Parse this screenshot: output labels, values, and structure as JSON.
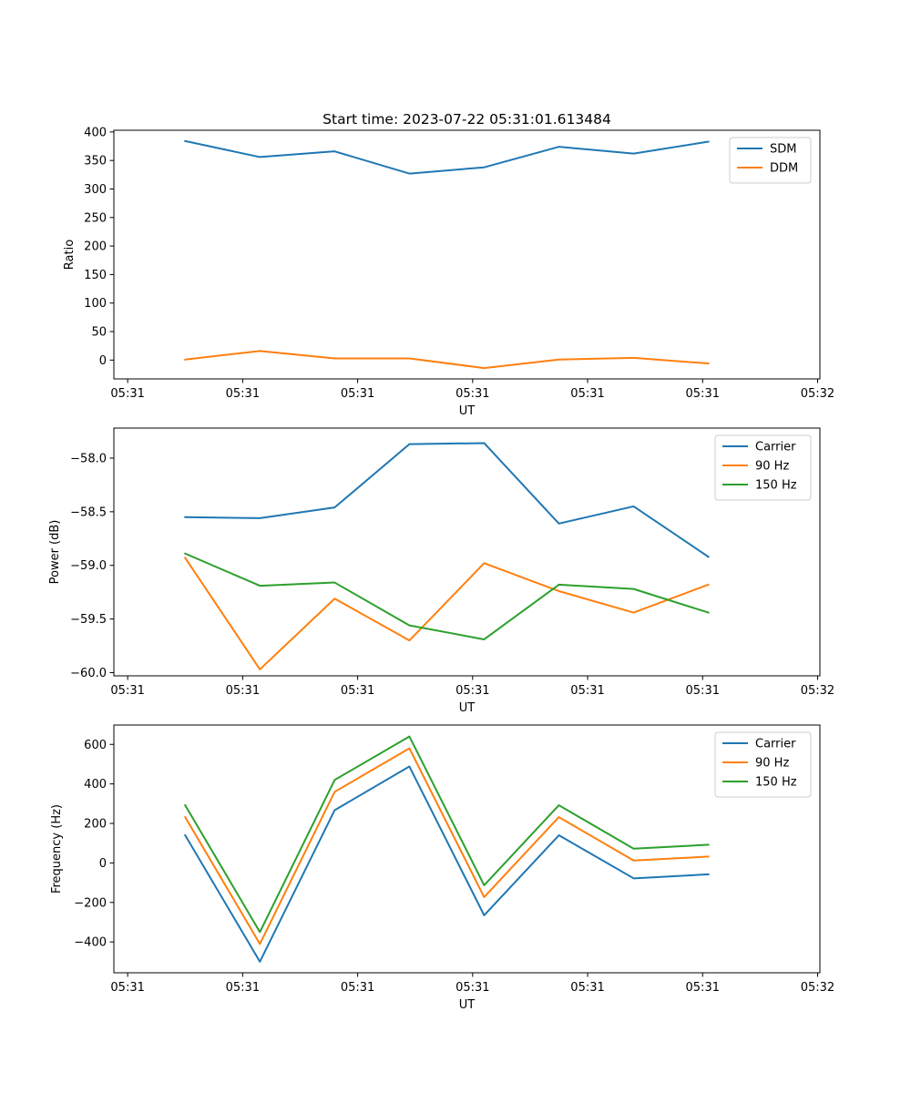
{
  "figure_title": "Start time: 2023-07-22 05:31:01.613484",
  "colors": {
    "blue": "#1f77b4",
    "orange": "#ff7f0e",
    "green": "#2ca02c"
  },
  "chart_data": [
    {
      "type": "line",
      "title": "Start time: 2023-07-22 05:31:01.613484",
      "xlabel": "UT",
      "ylabel": "Ratio",
      "x_positions": [
        0.5,
        1.15,
        1.8,
        2.45,
        3.1,
        3.75,
        4.4,
        5.05
      ],
      "x_lim": [
        -0.12,
        6.02
      ],
      "x_ticks": [
        0,
        1,
        2,
        3,
        4,
        5,
        6
      ],
      "x_tick_labels": [
        "05:31",
        "05:31",
        "05:31",
        "05:31",
        "05:31",
        "05:31",
        "05:32"
      ],
      "ylim": [
        -33,
        403
      ],
      "y_ticks": [
        0,
        50,
        100,
        150,
        200,
        250,
        300,
        350,
        400
      ],
      "y_tick_labels": [
        "0",
        "50",
        "100",
        "150",
        "200",
        "250",
        "300",
        "350",
        "400"
      ],
      "legend_position": "top-right",
      "series": [
        {
          "name": "SDM",
          "color": "#1f77b4",
          "values": [
            384,
            356,
            366,
            327,
            338,
            374,
            362,
            383
          ]
        },
        {
          "name": "DDM",
          "color": "#ff7f0e",
          "values": [
            1,
            16,
            3,
            3,
            -14,
            1,
            4,
            -6
          ]
        }
      ]
    },
    {
      "type": "line",
      "title": "",
      "xlabel": "UT",
      "ylabel": "Power (dB)",
      "x_positions": [
        0.5,
        1.15,
        1.8,
        2.45,
        3.1,
        3.75,
        4.4,
        5.05
      ],
      "x_lim": [
        -0.12,
        6.02
      ],
      "x_ticks": [
        0,
        1,
        2,
        3,
        4,
        5,
        6
      ],
      "x_tick_labels": [
        "05:31",
        "05:31",
        "05:31",
        "05:31",
        "05:31",
        "05:31",
        "05:32"
      ],
      "ylim": [
        -60.03,
        -57.72
      ],
      "y_ticks": [
        -60.0,
        -59.5,
        -59.0,
        -58.5,
        -58.0
      ],
      "y_tick_labels": [
        "−60.0",
        "−59.5",
        "−59.0",
        "−58.5",
        "−58.0"
      ],
      "legend_position": "top-right",
      "series": [
        {
          "name": "Carrier",
          "color": "#1f77b4",
          "values": [
            -58.55,
            -58.56,
            -58.46,
            -57.87,
            -57.86,
            -58.61,
            -58.45,
            -58.92
          ]
        },
        {
          "name": "90 Hz",
          "color": "#ff7f0e",
          "values": [
            -58.93,
            -59.97,
            -59.31,
            -59.7,
            -58.98,
            -59.24,
            -59.44,
            -59.18
          ]
        },
        {
          "name": "150 Hz",
          "color": "#2ca02c",
          "values": [
            -58.89,
            -59.19,
            -59.16,
            -59.56,
            -59.69,
            -59.18,
            -59.22,
            -59.44
          ]
        }
      ]
    },
    {
      "type": "line",
      "title": "",
      "xlabel": "UT",
      "ylabel": "Frequency (Hz)",
      "x_positions": [
        0.5,
        1.15,
        1.8,
        2.45,
        3.1,
        3.75,
        4.4,
        5.05
      ],
      "x_lim": [
        -0.12,
        6.02
      ],
      "x_ticks": [
        0,
        1,
        2,
        3,
        4,
        5,
        6
      ],
      "x_tick_labels": [
        "05:31",
        "05:31",
        "05:31",
        "05:31",
        "05:31",
        "05:31",
        "05:32"
      ],
      "ylim": [
        -556,
        698
      ],
      "y_ticks": [
        -400,
        -200,
        0,
        200,
        400,
        600
      ],
      "y_tick_labels": [
        "−400",
        "−200",
        "0",
        "200",
        "400",
        "600"
      ],
      "legend_position": "top-right",
      "series": [
        {
          "name": "Carrier",
          "color": "#1f77b4",
          "values": [
            140,
            -500,
            267,
            488,
            -265,
            140,
            -78,
            -58
          ]
        },
        {
          "name": "90 Hz",
          "color": "#ff7f0e",
          "values": [
            232,
            -410,
            360,
            580,
            -173,
            232,
            12,
            32
          ]
        },
        {
          "name": "150 Hz",
          "color": "#2ca02c",
          "values": [
            292,
            -350,
            420,
            640,
            -113,
            292,
            72,
            92
          ]
        }
      ]
    }
  ]
}
